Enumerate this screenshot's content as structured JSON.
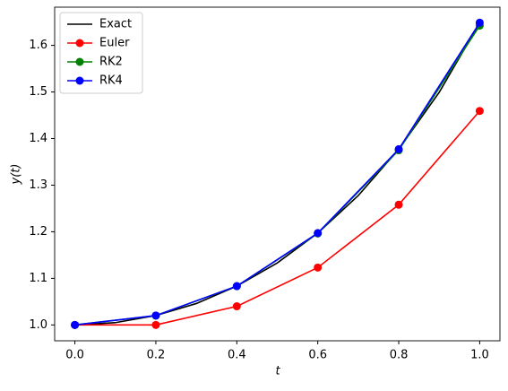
{
  "chart_data": {
    "type": "line",
    "xlabel": "t",
    "ylabel": "y(t)",
    "xlim": [
      -0.05,
      1.05
    ],
    "ylim": [
      0.966,
      1.682
    ],
    "xticks": [
      {
        "value": 0,
        "label": "0.0"
      },
      {
        "value": 0.2,
        "label": "0.2"
      },
      {
        "value": 0.4,
        "label": "0.4"
      },
      {
        "value": 0.6,
        "label": "0.6"
      },
      {
        "value": 0.8,
        "label": "0.8"
      },
      {
        "value": 1,
        "label": "1.0"
      }
    ],
    "yticks": [
      {
        "value": 1,
        "label": "1.0"
      },
      {
        "value": 1.1,
        "label": "1.1"
      },
      {
        "value": 1.2,
        "label": "1.2"
      },
      {
        "value": 1.3,
        "label": "1.3"
      },
      {
        "value": 1.4,
        "label": "1.4"
      },
      {
        "value": 1.5,
        "label": "1.5"
      },
      {
        "value": 1.6,
        "label": "1.6"
      }
    ],
    "legend": "upper left",
    "series": [
      {
        "name": "Exact",
        "color": "#000000",
        "markers": false,
        "x": [
          0,
          0.1,
          0.2,
          0.3,
          0.4,
          0.5,
          0.6,
          0.7,
          0.8,
          0.9,
          1.0
        ],
        "values": [
          1.0,
          1.005,
          1.0202,
          1.046,
          1.0833,
          1.1331,
          1.1972,
          1.2776,
          1.3771,
          1.4993,
          1.6487
        ]
      },
      {
        "name": "Euler",
        "color": "#ff0000",
        "markers": true,
        "x": [
          0,
          0.2,
          0.4,
          0.6,
          0.8,
          1.0
        ],
        "values": [
          1.0,
          1.0,
          1.04,
          1.1232,
          1.258,
          1.4593
        ]
      },
      {
        "name": "RK2",
        "color": "#008000",
        "markers": true,
        "x": [
          0,
          0.2,
          0.4,
          0.6,
          0.8,
          1.0
        ],
        "values": [
          1.0,
          1.02,
          1.0832,
          1.1963,
          1.3749,
          1.6425
        ]
      },
      {
        "name": "RK4",
        "color": "#0000ff",
        "markers": true,
        "x": [
          0,
          0.2,
          0.4,
          0.6,
          0.8,
          1.0
        ],
        "values": [
          1.0,
          1.0202,
          1.0833,
          1.1972,
          1.3771,
          1.6487
        ]
      }
    ]
  }
}
